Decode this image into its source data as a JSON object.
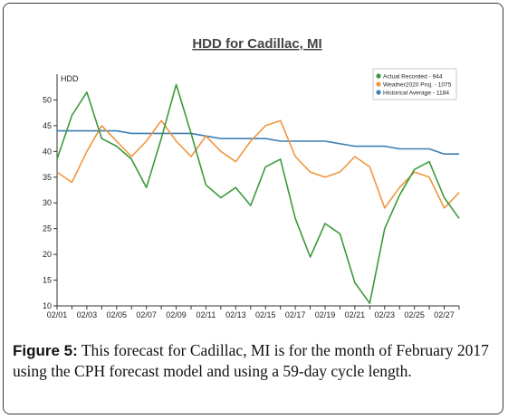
{
  "chart_data": {
    "type": "line",
    "title": "HDD for Cadillac, MI",
    "ylabel": "HDD",
    "xlabel": "",
    "ylim": [
      10,
      55
    ],
    "yticks": [
      10,
      15,
      20,
      25,
      30,
      35,
      40,
      45,
      50
    ],
    "x": [
      "02/01",
      "02/02",
      "02/03",
      "02/04",
      "02/05",
      "02/06",
      "02/07",
      "02/08",
      "02/09",
      "02/10",
      "02/11",
      "02/12",
      "02/13",
      "02/14",
      "02/15",
      "02/16",
      "02/17",
      "02/18",
      "02/19",
      "02/20",
      "02/21",
      "02/22",
      "02/23",
      "02/24",
      "02/25",
      "02/26",
      "02/27",
      "02/28"
    ],
    "xtick_labels": [
      "02/01",
      "02/03",
      "02/05",
      "02/07",
      "02/09",
      "02/11",
      "02/13",
      "02/15",
      "02/17",
      "02/19",
      "02/21",
      "02/23",
      "02/25",
      "02/27"
    ],
    "grid": false,
    "legend_position": "top-right",
    "series": [
      {
        "name": "Actual Recorded - 944",
        "color": "#3a9a3a",
        "values": [
          38.5,
          47,
          51.5,
          42.5,
          41,
          38.5,
          33,
          42.5,
          53,
          43.5,
          33.5,
          31,
          33,
          29.5,
          37,
          38.5,
          27,
          19.5,
          26,
          24,
          14.5,
          10.5,
          25,
          31.5,
          36.5,
          38,
          31,
          27
        ]
      },
      {
        "name": "Weather2020 Proj. - 1075",
        "color": "#f0953e",
        "values": [
          36,
          34,
          40,
          45,
          42,
          39,
          42,
          46,
          42,
          39,
          43,
          40,
          38,
          42,
          45,
          46,
          39,
          36,
          35,
          36,
          39,
          37,
          29,
          33,
          36,
          35,
          29,
          32
        ]
      },
      {
        "name": "Historical Average - 1184",
        "color": "#3d7fb3",
        "values": [
          44,
          44,
          44,
          44,
          44,
          43.5,
          43.5,
          43.5,
          43.5,
          43.5,
          43,
          42.5,
          42.5,
          42.5,
          42.5,
          42,
          42,
          42,
          42,
          41.5,
          41,
          41,
          41,
          40.5,
          40.5,
          40.5,
          39.5,
          39.5
        ]
      }
    ]
  },
  "caption": {
    "lead": "Figure 5:",
    "text": " This forecast for Cadillac, MI is for the month of February 2017 using the CPH forecast model and using a 59-day cycle length."
  }
}
